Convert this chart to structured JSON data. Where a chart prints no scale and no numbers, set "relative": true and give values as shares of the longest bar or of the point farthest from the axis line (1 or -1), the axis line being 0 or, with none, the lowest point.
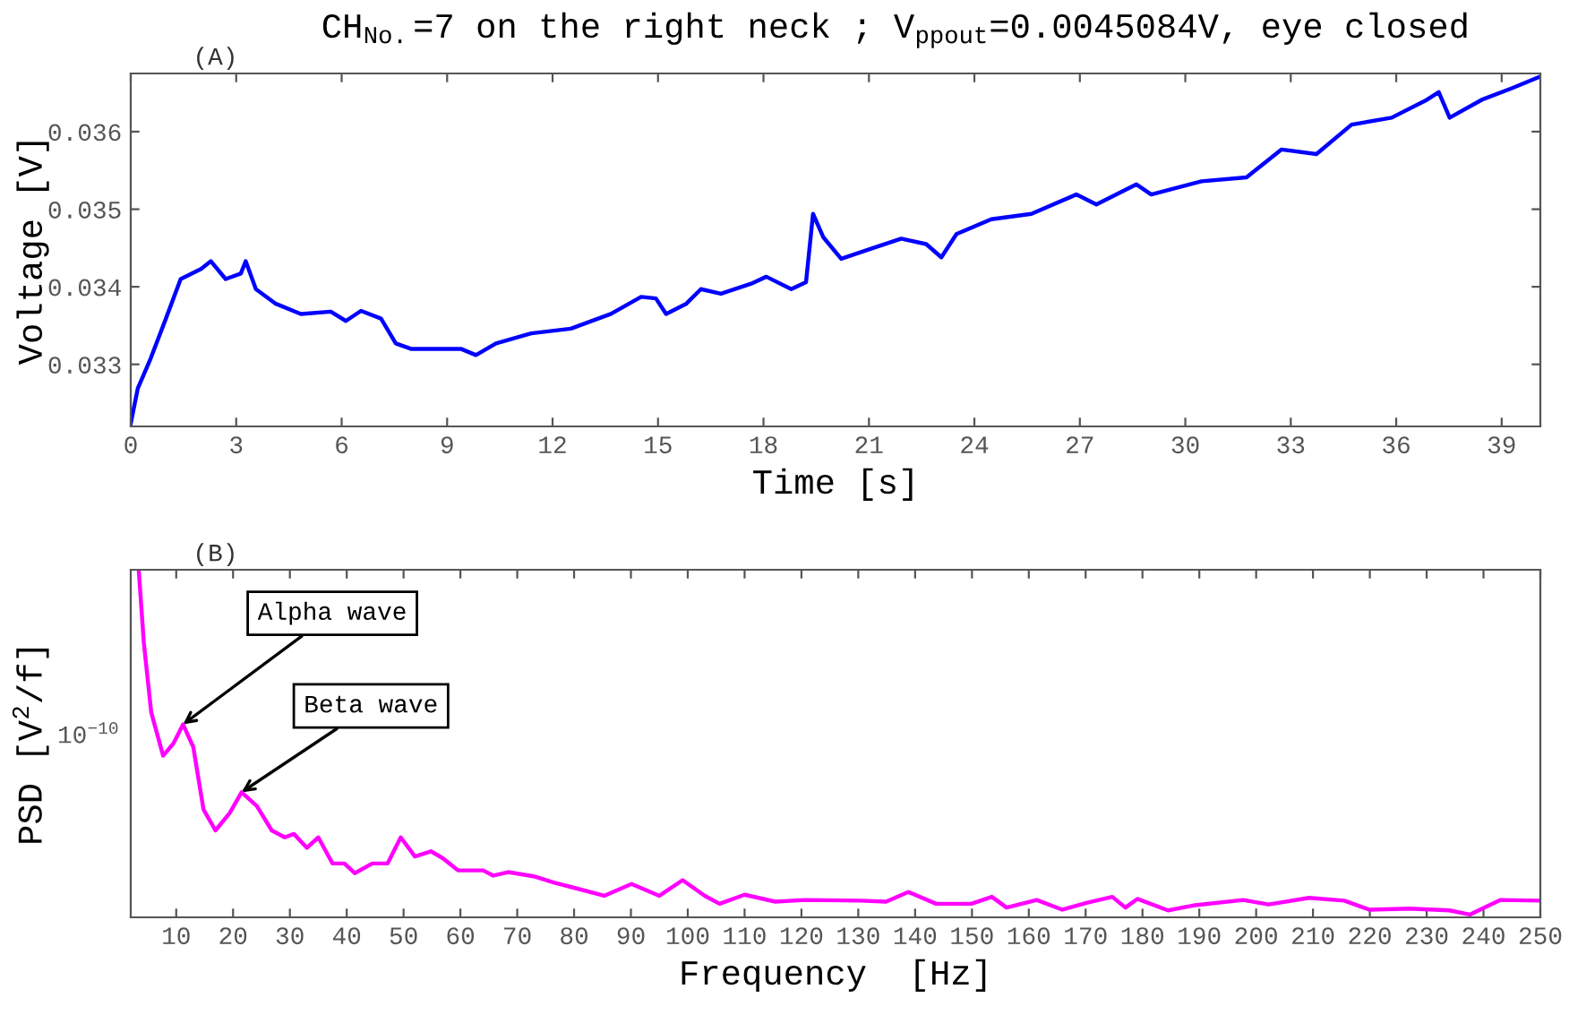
{
  "chart_data": [
    {
      "type": "line",
      "title": "CH$_{No.}$=7 on the right neck ; V$_{ppout}$=0.0045084V, eye closed",
      "subtitle": "(A)",
      "xlabel": "Time [s]",
      "ylabel": "Voltage [V]",
      "grid": false,
      "legend": false,
      "xlim": [
        0,
        40.1
      ],
      "xticks": [
        0,
        3,
        6,
        9,
        12,
        15,
        18,
        21,
        24,
        27,
        30,
        33,
        36,
        39
      ],
      "ylim": [
        0.0322,
        0.03675
      ],
      "yticks": [
        0.033,
        0.034,
        0.035,
        0.036
      ],
      "series": [
        {
          "color": "#0000ff",
          "x": [
            0,
            0.2,
            0.57,
            1.0,
            1.42,
            2.0,
            2.28,
            2.7,
            3.13,
            3.27,
            3.56,
            4.13,
            4.84,
            5.69,
            6.12,
            6.55,
            7.12,
            7.54,
            7.97,
            8.83,
            9.39,
            9.82,
            10.39,
            11.39,
            12.52,
            13.66,
            14.52,
            14.94,
            15.23,
            15.8,
            16.22,
            16.79,
            17.65,
            18.08,
            18.79,
            19.21,
            19.41,
            19.7,
            20.21,
            21.06,
            21.92,
            22.63,
            23.06,
            23.49,
            24.48,
            25.62,
            26.9,
            27.47,
            28.61,
            29.03,
            30.46,
            31.74,
            32.74,
            33.73,
            34.73,
            35.87,
            36.87,
            37.21,
            37.52,
            38.43,
            39.29,
            40.1
          ],
          "values": [
            0.03224,
            0.03269,
            0.03308,
            0.03359,
            0.0341,
            0.03423,
            0.03433,
            0.0341,
            0.03417,
            0.03433,
            0.03397,
            0.03378,
            0.03365,
            0.03368,
            0.03356,
            0.03369,
            0.03359,
            0.03327,
            0.0332,
            0.0332,
            0.0332,
            0.03312,
            0.03327,
            0.0334,
            0.03346,
            0.03365,
            0.03387,
            0.03385,
            0.03365,
            0.03378,
            0.03397,
            0.03391,
            0.03404,
            0.03413,
            0.03397,
            0.03406,
            0.03494,
            0.03464,
            0.03436,
            0.03449,
            0.03462,
            0.03455,
            0.03438,
            0.03468,
            0.03487,
            0.03494,
            0.03519,
            0.03506,
            0.03532,
            0.03519,
            0.03536,
            0.03541,
            0.03577,
            0.03571,
            0.03609,
            0.03618,
            0.03641,
            0.03651,
            0.03618,
            0.03641,
            0.03656,
            0.03671
          ]
        }
      ]
    },
    {
      "type": "line",
      "subtitle": "(B)",
      "xlabel": "Frequency  [Hz]",
      "ylabel": "PSD [V$^{2}$/f]",
      "grid": false,
      "legend": false,
      "relative": true,
      "xlim": [
        2,
        250
      ],
      "xticks": [
        10,
        20,
        30,
        40,
        50,
        60,
        70,
        80,
        90,
        100,
        110,
        120,
        130,
        140,
        150,
        160,
        170,
        180,
        190,
        200,
        210,
        220,
        230,
        240,
        250
      ],
      "annotations": [
        {
          "text": "Alpha wave",
          "x": 11.2,
          "y": 0.555
        },
        {
          "text": "Beta wave",
          "x": 21.5,
          "y": 0.36
        },
        "10$^{−10}$"
      ],
      "series": [
        {
          "color": "#ff00ff",
          "x": [
            3.4,
            4.3,
            5.6,
            7.7,
            9.5,
            11.2,
            13.0,
            14.8,
            16.9,
            19.4,
            21.5,
            24.2,
            26.8,
            29.1,
            30.7,
            33.0,
            35.0,
            37.5,
            39.6,
            41.4,
            44.5,
            47.2,
            49.5,
            52.0,
            54.8,
            56.9,
            59.6,
            64.0,
            65.8,
            68.4,
            72.9,
            76.4,
            80.0,
            85.3,
            90.1,
            95.0,
            99.1,
            103,
            105.6,
            110,
            115.4,
            120.7,
            130.4,
            134.9,
            138.8,
            143.7,
            149.9,
            153.5,
            156.1,
            161.4,
            165.9,
            170.3,
            174.7,
            177,
            179.1,
            184.5,
            188.9,
            197.7,
            202.2,
            209.3,
            215.5,
            219.9,
            227,
            234,
            237.6,
            243,
            250
          ],
          "values": [
            1.0,
            0.79,
            0.59,
            0.465,
            0.5,
            0.555,
            0.49,
            0.31,
            0.25,
            0.3,
            0.36,
            0.32,
            0.25,
            0.23,
            0.24,
            0.2,
            0.23,
            0.155,
            0.155,
            0.127,
            0.155,
            0.155,
            0.23,
            0.175,
            0.19,
            0.17,
            0.135,
            0.135,
            0.12,
            0.13,
            0.118,
            0.1,
            0.085,
            0.062,
            0.096,
            0.062,
            0.107,
            0.062,
            0.039,
            0.065,
            0.045,
            0.05,
            0.048,
            0.045,
            0.073,
            0.039,
            0.039,
            0.059,
            0.028,
            0.05,
            0.022,
            0.042,
            0.059,
            0.028,
            0.053,
            0.02,
            0.034,
            0.05,
            0.037,
            0.056,
            0.048,
            0.022,
            0.025,
            0.02,
            0.008,
            0.05,
            0.048
          ]
        }
      ]
    }
  ]
}
